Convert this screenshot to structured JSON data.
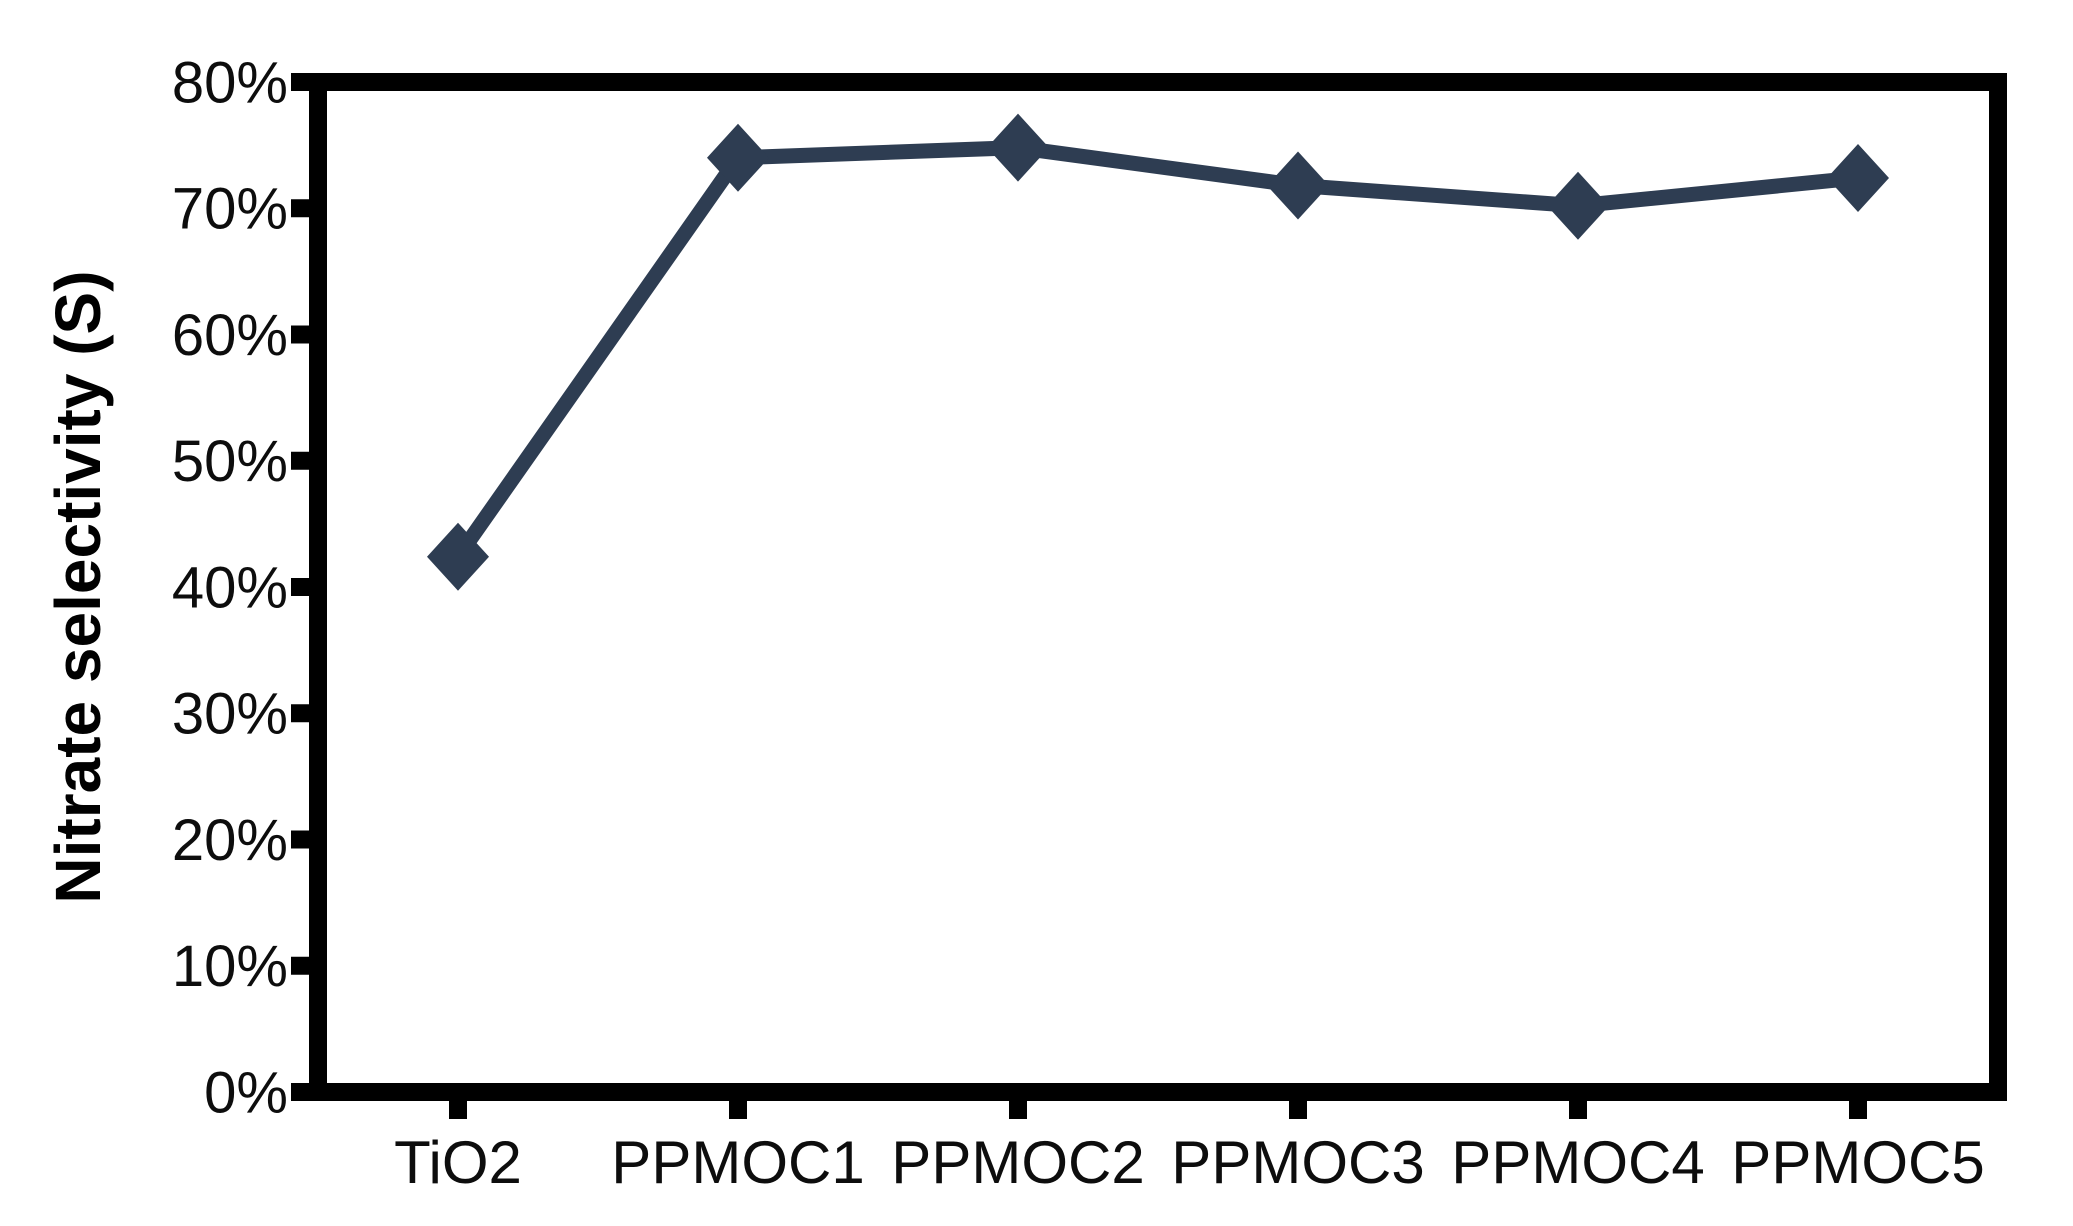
{
  "chart_data": {
    "type": "line",
    "title": "",
    "xlabel": "",
    "ylabel": "Nitrate selectivity (S)",
    "categories": [
      "TiO2",
      "PPMOC1",
      "PPMOC2",
      "PPMOC3",
      "PPMOC4",
      "PPMOC5"
    ],
    "series": [
      {
        "values": [
          42.4,
          74,
          74.8,
          71.8,
          70.2,
          72.4
        ]
      }
    ],
    "value_unit": "%",
    "ylim": [
      0,
      80
    ],
    "y_tick_values": [
      0,
      10,
      20,
      30,
      40,
      50,
      60,
      70,
      80
    ],
    "y_tick_labels": [
      "0%",
      "10%",
      "20%",
      "30%",
      "40%",
      "50%",
      "60%",
      "70%",
      "80%"
    ],
    "grid": false,
    "legend": "none",
    "marker": "diamond",
    "colors": {
      "line": "#2E3D52",
      "marker": "#2E3D52",
      "axis": "#000000",
      "text": "#0d0d0d",
      "background": "#ffffff"
    }
  }
}
